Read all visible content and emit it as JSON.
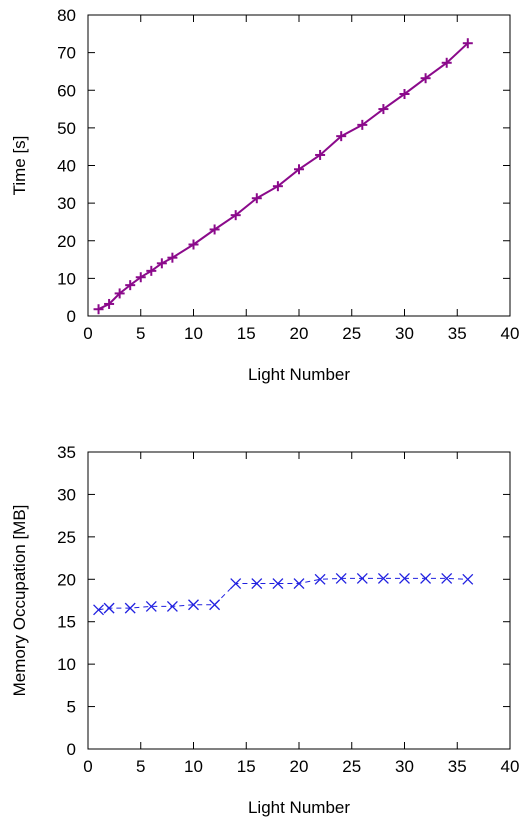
{
  "chart_data": [
    {
      "type": "line",
      "xlabel": "Light Number",
      "ylabel": "Time [s]",
      "xlim": [
        0,
        40
      ],
      "ylim": [
        0,
        80
      ],
      "xticks": [
        0,
        5,
        10,
        15,
        20,
        25,
        30,
        35,
        40
      ],
      "yticks": [
        0,
        10,
        20,
        30,
        40,
        50,
        60,
        70,
        80
      ],
      "grid": false,
      "series": [
        {
          "color": "#8b0a8b",
          "marker": "plus",
          "line": "solid",
          "x": [
            1,
            2,
            3,
            4,
            5,
            6,
            7,
            8,
            10,
            12,
            14,
            16,
            18,
            20,
            22,
            24,
            26,
            28,
            30,
            32,
            34,
            36
          ],
          "y": [
            1.8,
            3.2,
            6.0,
            8.2,
            10.3,
            12.0,
            14.0,
            15.5,
            19.0,
            23.0,
            26.8,
            31.3,
            34.5,
            39.0,
            42.8,
            47.8,
            50.8,
            55.0,
            59.0,
            63.2,
            67.3,
            72.5
          ]
        }
      ]
    },
    {
      "type": "line",
      "xlabel": "Light Number",
      "ylabel": "Memory Occupation [MB]",
      "xlim": [
        0,
        40
      ],
      "ylim": [
        0,
        35
      ],
      "xticks": [
        0,
        5,
        10,
        15,
        20,
        25,
        30,
        35,
        40
      ],
      "yticks": [
        0,
        5,
        10,
        15,
        20,
        25,
        30,
        35
      ],
      "grid": false,
      "series": [
        {
          "color": "#2020e0",
          "marker": "x",
          "line": "dashed",
          "x": [
            1,
            2,
            4,
            6,
            8,
            10,
            12,
            14,
            16,
            18,
            20,
            22,
            24,
            26,
            28,
            30,
            32,
            34,
            36
          ],
          "y": [
            16.4,
            16.6,
            16.6,
            16.8,
            16.8,
            17.0,
            17.0,
            19.5,
            19.5,
            19.5,
            19.5,
            20.0,
            20.1,
            20.1,
            20.1,
            20.1,
            20.1,
            20.1,
            20.0
          ]
        }
      ]
    }
  ]
}
